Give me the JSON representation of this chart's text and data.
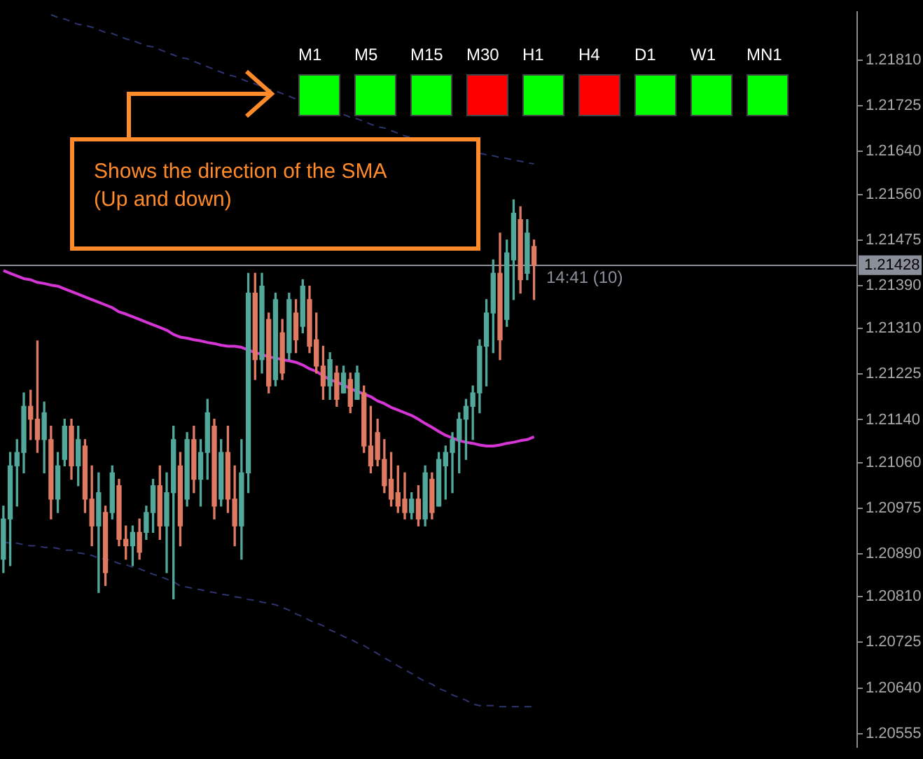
{
  "chart_data": {
    "type": "candlestick",
    "categories": [
      null,
      null,
      null,
      null,
      null,
      null,
      null,
      null,
      null,
      null,
      null,
      null,
      null,
      null,
      null,
      null,
      null,
      null,
      null,
      null,
      null,
      null,
      null,
      null,
      null,
      null,
      null,
      null,
      null,
      null,
      null,
      null,
      null,
      null,
      null,
      null,
      null,
      null,
      null,
      null,
      null,
      null,
      null,
      null,
      null,
      null,
      null,
      null,
      null,
      null,
      null,
      null,
      null,
      null,
      null,
      null,
      null,
      null,
      null,
      null,
      null,
      null,
      null,
      null,
      null,
      null,
      null,
      null,
      null,
      null,
      null,
      null,
      null,
      null,
      null,
      null,
      null,
      null,
      null,
      null,
      null,
      null,
      null,
      null,
      null,
      null,
      null,
      null,
      null,
      null,
      null,
      null,
      null,
      null,
      null,
      null,
      null,
      null,
      null,
      null,
      null,
      null,
      null,
      null,
      null,
      null,
      null,
      null,
      null,
      null,
      null,
      null,
      null,
      null,
      null,
      null,
      null,
      null,
      null,
      null,
      null,
      null,
      null,
      null,
      null,
      null
    ],
    "ohlc": [
      [
        1.2088,
        1.20979,
        1.20855,
        1.20955
      ],
      [
        1.20955,
        1.21079,
        1.20868,
        1.21054
      ],
      [
        1.21054,
        1.21103,
        1.20979,
        1.21079
      ],
      [
        1.21079,
        1.2119,
        1.21041,
        1.21165
      ],
      [
        1.21165,
        1.21195,
        1.21103,
        1.21141
      ],
      [
        1.21141,
        1.21287,
        1.21079,
        1.21103
      ],
      [
        1.21103,
        1.21173,
        1.21041,
        1.21153
      ],
      [
        1.21103,
        1.21128,
        1.20955,
        1.20992
      ],
      [
        1.20992,
        1.21079,
        1.20967,
        1.21054
      ],
      [
        1.21066,
        1.21141,
        1.21054,
        1.21128
      ],
      [
        1.21128,
        1.21141,
        1.21029,
        1.21054
      ],
      [
        1.21054,
        1.21128,
        1.21017,
        1.21103
      ],
      [
        1.21091,
        1.21103,
        1.20967,
        1.20992
      ],
      [
        1.20992,
        1.21054,
        1.20905,
        1.20942
      ],
      [
        1.20942,
        1.21041,
        1.20818,
        1.21004
      ],
      [
        1.20967,
        1.20979,
        1.20831,
        1.20855
      ],
      [
        1.20967,
        1.21054,
        1.20955,
        1.21041
      ],
      [
        1.21017,
        1.21029,
        1.20905,
        1.20917
      ],
      [
        1.20917,
        1.20942,
        1.2088,
        1.20905
      ],
      [
        1.20905,
        1.20942,
        1.20868,
        1.2093
      ],
      [
        1.2093,
        1.20955,
        1.2088,
        1.20893
      ],
      [
        1.2093,
        1.20979,
        1.20917,
        1.20967
      ],
      [
        1.20967,
        1.21029,
        1.2093,
        1.21017
      ],
      [
        1.21017,
        1.21054,
        1.20917,
        1.20942
      ],
      [
        1.20942,
        1.21041,
        1.20855,
        1.21004
      ],
      [
        1.21004,
        1.21128,
        1.20806,
        1.21103
      ],
      [
        1.21054,
        1.21079,
        1.20905,
        1.20942
      ],
      [
        1.20992,
        1.21116,
        1.20979,
        1.21103
      ],
      [
        1.21103,
        1.21128,
        1.21004,
        1.21029
      ],
      [
        1.21029,
        1.21103,
        1.20979,
        1.21079
      ],
      [
        1.21079,
        1.21178,
        1.21029,
        1.21153
      ],
      [
        1.21128,
        1.21141,
        1.20955,
        1.20979
      ],
      [
        1.20992,
        1.21103,
        1.20979,
        1.21079
      ],
      [
        1.21079,
        1.21128,
        1.20967,
        1.20992
      ],
      [
        1.20992,
        1.21054,
        1.20905,
        1.20942
      ],
      [
        1.20942,
        1.21103,
        1.2088,
        1.21041
      ],
      [
        1.21041,
        1.21413,
        1.21004,
        1.21376
      ],
      [
        1.21376,
        1.21413,
        1.21215,
        1.21252
      ],
      [
        1.21252,
        1.21413,
        1.21227,
        1.21389
      ],
      [
        1.21327,
        1.21339,
        1.2119,
        1.21203
      ],
      [
        1.21215,
        1.21376,
        1.21203,
        1.21364
      ],
      [
        1.21302,
        1.21327,
        1.21215,
        1.21227
      ],
      [
        1.21265,
        1.21376,
        1.21252,
        1.21364
      ],
      [
        1.21339,
        1.21364,
        1.21265,
        1.21289
      ],
      [
        1.21314,
        1.21401,
        1.21302,
        1.21389
      ],
      [
        1.21364,
        1.21389,
        1.21265,
        1.21277
      ],
      [
        1.21289,
        1.21339,
        1.21227,
        1.2124
      ],
      [
        1.2124,
        1.21277,
        1.21178,
        1.21203
      ],
      [
        1.21203,
        1.21265,
        1.21178,
        1.21252
      ],
      [
        1.21227,
        1.2124,
        1.21165,
        1.21178
      ],
      [
        1.2119,
        1.2124,
        1.2119,
        1.21227
      ],
      [
        1.21215,
        1.21227,
        1.21153,
        1.21165
      ],
      [
        1.21178,
        1.2124,
        1.21178,
        1.21227
      ],
      [
        1.2119,
        1.21203,
        1.21079,
        1.21091
      ],
      [
        1.21091,
        1.21165,
        1.21041,
        1.21054
      ],
      [
        1.21116,
        1.21141,
        1.21054,
        1.21066
      ],
      [
        1.21066,
        1.21103,
        1.21004,
        1.21017
      ],
      [
        1.21029,
        1.21079,
        1.20979,
        1.20992
      ],
      [
        1.21004,
        1.21054,
        1.20967,
        1.20979
      ],
      [
        1.20992,
        1.21041,
        1.20955,
        1.20967
      ],
      [
        1.20967,
        1.21004,
        1.20955,
        1.20992
      ],
      [
        1.20992,
        1.21017,
        1.20942,
        1.20955
      ],
      [
        1.20955,
        1.21054,
        1.20942,
        1.21041
      ],
      [
        1.21029,
        1.21041,
        1.20955,
        1.20967
      ],
      [
        1.20979,
        1.21079,
        1.20979,
        1.21066
      ],
      [
        1.21054,
        1.21091,
        1.20992,
        1.21079
      ],
      [
        1.21079,
        1.21116,
        1.21004,
        1.21103
      ],
      [
        1.21103,
        1.21153,
        1.21041,
        1.21141
      ],
      [
        1.21141,
        1.21178,
        1.21066,
        1.21165
      ],
      [
        1.21165,
        1.21203,
        1.21103,
        1.2119
      ],
      [
        1.2119,
        1.21289,
        1.21153,
        1.21277
      ],
      [
        1.21277,
        1.21364,
        1.21203,
        1.21339
      ],
      [
        1.21339,
        1.21438,
        1.21265,
        1.21413
      ],
      [
        1.21413,
        1.21488,
        1.21252,
        1.21289
      ],
      [
        1.21327,
        1.21475,
        1.21314,
        1.21451
      ],
      [
        1.21438,
        1.2155,
        1.21364,
        1.21525
      ],
      [
        1.21513,
        1.21537,
        1.21376,
        1.21401
      ],
      [
        1.21413,
        1.21513,
        1.21401,
        1.21488
      ],
      [
        1.21463,
        1.21475,
        1.21364,
        1.21428
      ],
      null,
      null,
      null,
      null,
      null,
      null,
      null,
      null,
      null,
      null,
      null,
      null,
      null,
      null,
      null,
      null,
      null,
      null,
      null,
      null,
      null,
      null,
      null,
      null,
      null,
      null,
      null,
      null,
      null,
      null,
      null,
      null,
      null,
      null,
      null,
      null,
      null,
      null,
      null,
      null,
      null,
      null,
      null,
      null,
      null,
      null,
      null
    ],
    "colors": [
      "#52a89b",
      "#52a89b",
      "#52a89b",
      "#52a89b",
      "#e07a62",
      "#e07a62",
      "#52a89b",
      "#e07a62",
      "#52a89b",
      "#52a89b",
      "#e07a62",
      "#52a89b",
      "#e07a62",
      "#e07a62",
      "#52a89b",
      "#e07a62",
      "#52a89b",
      "#e07a62",
      "#e07a62",
      "#52a89b",
      "#e07a62",
      "#52a89b",
      "#52a89b",
      "#e07a62",
      "#52a89b",
      "#52a89b",
      "#e07a62",
      "#52a89b",
      "#e07a62",
      "#52a89b",
      "#52a89b",
      "#e07a62",
      "#52a89b",
      "#e07a62",
      "#e07a62",
      "#52a89b",
      "#52a89b",
      "#e07a62",
      "#52a89b",
      "#e07a62",
      "#52a89b",
      "#e07a62",
      "#52a89b",
      "#e07a62",
      "#52a89b",
      "#e07a62",
      "#e07a62",
      "#e07a62",
      "#52a89b",
      "#e07a62",
      "#52a89b",
      "#e07a62",
      "#52a89b",
      "#e07a62",
      "#e07a62",
      "#e07a62",
      "#e07a62",
      "#e07a62",
      "#e07a62",
      "#e07a62",
      "#52a89b",
      "#e07a62",
      "#52a89b",
      "#e07a62",
      "#52a89b",
      "#52a89b",
      "#52a89b",
      "#52a89b",
      "#52a89b",
      "#52a89b",
      "#52a89b",
      "#52a89b",
      "#52a89b",
      "#e07a62",
      "#52a89b",
      "#52a89b",
      "#e07a62",
      "#52a89b",
      "#e07a62",
      null,
      null,
      null,
      null,
      null,
      null,
      null,
      null,
      null,
      null,
      null,
      null,
      null,
      null,
      null,
      null,
      null,
      null,
      null,
      null,
      null,
      null,
      null,
      null,
      null,
      null,
      null,
      null,
      null,
      null,
      null,
      null,
      null,
      null,
      null,
      null,
      null,
      null,
      null,
      null,
      null,
      null,
      null,
      null,
      null,
      null,
      null
    ],
    "series": [
      {
        "type": "line",
        "color": "#d535d5",
        "values": [
          1.21418,
          1.21413,
          1.21408,
          1.21403,
          1.21401,
          1.21396,
          1.21394,
          1.21391,
          1.21389,
          1.21384,
          1.21379,
          1.21374,
          1.21369,
          1.21364,
          1.21359,
          1.21354,
          1.21349,
          1.21341,
          1.21337,
          1.21332,
          1.21327,
          1.21322,
          1.21317,
          1.21312,
          1.21307,
          1.21299,
          1.21294,
          1.21292,
          1.21289,
          1.21287,
          1.21284,
          1.21282,
          1.21279,
          1.21277,
          1.21277,
          1.21275,
          1.2127,
          1.21265,
          1.21262,
          1.21257,
          1.21255,
          1.21252,
          1.2125,
          1.21247,
          1.21242,
          1.21235,
          1.2123,
          1.21222,
          1.21215,
          1.2121,
          1.21205,
          1.21198,
          1.21193,
          1.21188,
          1.21183,
          1.21175,
          1.2117,
          1.21163,
          1.21158,
          1.21153,
          1.21148,
          1.21141,
          1.21133,
          1.21126,
          1.21118,
          1.21111,
          1.21106,
          1.21101,
          1.21098,
          1.21096,
          1.21093,
          1.21091,
          1.21091,
          1.21093,
          1.21096,
          1.21098,
          1.21101,
          1.21103,
          1.21108,
          null,
          null,
          null,
          null,
          null,
          null,
          null,
          null,
          null,
          null,
          null,
          null,
          null,
          null,
          null,
          null,
          null,
          null,
          null,
          null,
          null,
          null,
          null,
          null,
          null,
          null,
          null,
          null,
          null,
          null,
          null,
          null,
          null,
          null,
          null,
          null,
          null,
          null,
          null,
          null,
          null,
          null,
          null,
          null,
          null,
          null,
          null
        ]
      },
      {
        "type": "line",
        "color": "#2e3470",
        "line_style": "dashed",
        "values": [
          null,
          null,
          null,
          null,
          null,
          null,
          null,
          1.21895,
          1.2189,
          1.21887,
          1.21882,
          1.21877,
          1.21875,
          1.21872,
          1.21867,
          1.21862,
          1.2186,
          1.21855,
          1.2185,
          1.21847,
          1.21842,
          1.21837,
          1.21835,
          1.2183,
          1.21825,
          1.2182,
          1.21815,
          1.21813,
          1.21808,
          1.21803,
          1.21798,
          1.21793,
          1.21788,
          1.21783,
          1.2178,
          1.21775,
          1.2177,
          1.21766,
          1.21761,
          1.21756,
          1.21753,
          1.21748,
          1.21743,
          1.21738,
          null,
          null,
          null,
          null,
          null,
          null,
          1.21709,
          1.21704,
          1.21701,
          1.21696,
          1.21691,
          1.21686,
          1.21684,
          1.21679,
          1.21674,
          1.21669,
          1.21666,
          null,
          null,
          null,
          null,
          null,
          null,
          null,
          null,
          null,
          1.21637,
          1.21634,
          1.21632,
          1.21629,
          1.21627,
          1.21624,
          1.21622,
          1.21619,
          1.21617,
          null,
          null,
          null,
          null,
          null,
          null,
          null,
          null,
          null,
          null,
          null,
          null,
          null,
          null,
          null,
          null,
          null,
          null,
          null,
          null,
          null,
          null,
          null,
          null,
          null,
          null,
          null,
          null,
          null,
          null,
          null,
          null,
          null,
          null,
          null,
          null,
          null,
          null,
          null,
          null,
          null,
          null,
          null,
          null,
          null,
          null,
          null
        ]
      },
      {
        "type": "line",
        "color": "#2e3470",
        "line_style": "dashed",
        "values": [
          1.20912,
          1.2091,
          1.2091,
          1.20907,
          1.20905,
          1.20905,
          1.20902,
          1.20902,
          1.209,
          1.20897,
          1.20897,
          1.20892,
          1.2089,
          1.20887,
          1.20882,
          1.2088,
          1.20877,
          1.20872,
          1.2087,
          1.20865,
          1.20862,
          1.20857,
          1.20852,
          1.20848,
          1.20843,
          1.20838,
          1.2083,
          1.20828,
          1.20825,
          1.20823,
          1.2082,
          1.20818,
          1.20815,
          1.20813,
          1.2081,
          1.20808,
          1.20805,
          1.20803,
          1.208,
          1.20798,
          1.20795,
          1.2079,
          1.20785,
          1.20778,
          1.20773,
          1.20766,
          1.20761,
          1.20756,
          1.20748,
          1.20743,
          1.20736,
          1.20731,
          1.20724,
          1.20719,
          1.20711,
          1.20704,
          1.20696,
          1.20689,
          1.20681,
          1.20674,
          1.20667,
          1.20659,
          1.20652,
          1.20647,
          1.20639,
          1.20634,
          1.20627,
          1.20622,
          1.20617,
          1.2061,
          1.20607,
          1.20607,
          1.20607,
          1.20605,
          1.20605,
          1.20605,
          1.20605,
          1.20605,
          1.20605,
          null,
          null,
          null,
          null,
          null,
          null,
          null,
          null,
          null,
          null,
          null,
          null,
          null,
          null,
          null,
          null,
          null,
          null,
          null,
          null,
          null,
          null,
          null,
          null,
          null,
          null,
          null,
          null,
          null,
          null,
          null,
          null,
          null,
          null,
          null,
          null,
          null,
          null,
          null,
          null,
          null,
          null,
          null,
          null,
          null,
          null,
          null
        ]
      }
    ],
    "ylim": [
      1.2053,
      1.219
    ],
    "yticks": [
      {
        "value": 1.2181,
        "label": "1.21810"
      },
      {
        "value": 1.21725,
        "label": "1.21725"
      },
      {
        "value": 1.2164,
        "label": "1.21640"
      },
      {
        "value": 1.2156,
        "label": "1.21560"
      },
      {
        "value": 1.21475,
        "label": "1.21475"
      },
      {
        "value": 1.2139,
        "label": "1.21390"
      },
      {
        "value": 1.2131,
        "label": "1.21310"
      },
      {
        "value": 1.21225,
        "label": "1.21225"
      },
      {
        "value": 1.2114,
        "label": "1.21140"
      },
      {
        "value": 1.2106,
        "label": "1.21060"
      },
      {
        "value": 1.20975,
        "label": "1.20975"
      },
      {
        "value": 1.2089,
        "label": "1.20890"
      },
      {
        "value": 1.2081,
        "label": "1.20810"
      },
      {
        "value": 1.20725,
        "label": "1.20725"
      },
      {
        "value": 1.2064,
        "label": "1.20640"
      },
      {
        "value": 1.20555,
        "label": "1.20555"
      }
    ],
    "ref_lines": [
      {
        "axis": "y",
        "value": 1.21428,
        "label": "1.21428",
        "color": "#8a8f99"
      }
    ],
    "annotations": [
      "Shows the direction of the SMA\n(Up and down)",
      "M1",
      "M5",
      "M15",
      "M30",
      "H1",
      "H4",
      "D1",
      "W1",
      "MN1",
      "14:41 (10)"
    ],
    "tick_labels": "y",
    "grid": false
  }
}
